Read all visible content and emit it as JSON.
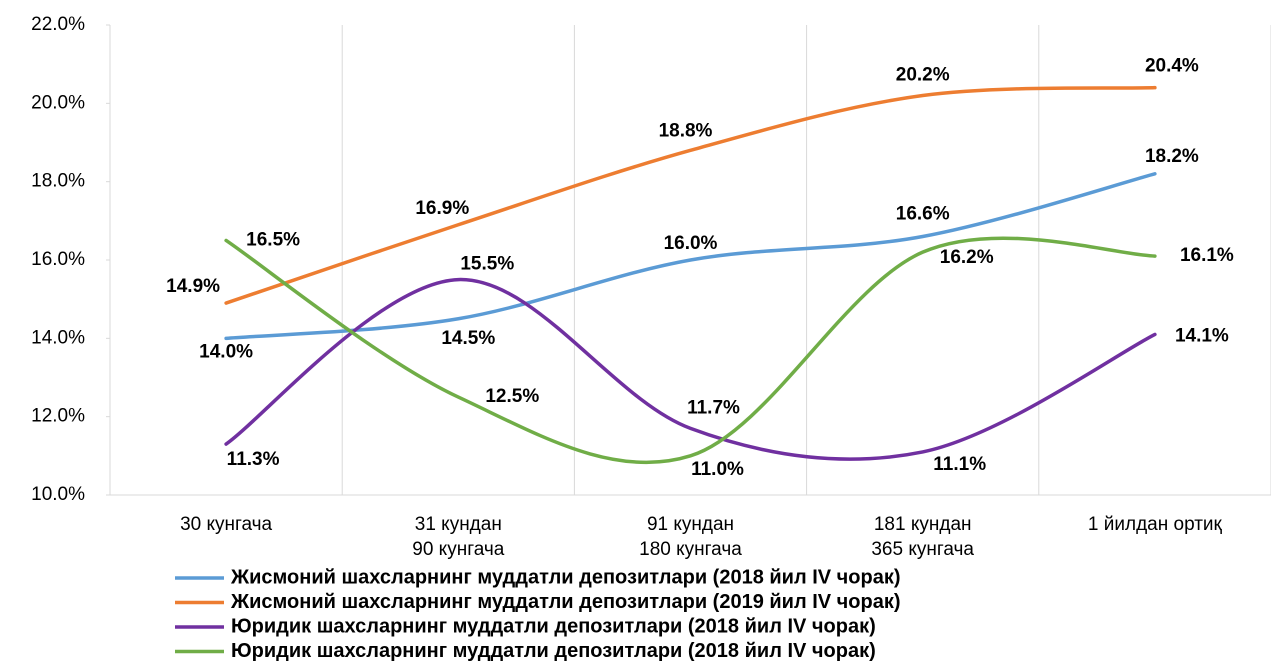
{
  "chart_data": {
    "type": "line",
    "categories": [
      "30 кунгача",
      "31 кундан\n90 кунгача",
      "91 кундан\n180 кунгача",
      "181 кундан\n365 кунгача",
      "1 йилдан ортиқ"
    ],
    "ylim": [
      10,
      22
    ],
    "yticks": [
      {
        "value": 10,
        "label": "10.0%"
      },
      {
        "value": 12,
        "label": "12.0%"
      },
      {
        "value": 14,
        "label": "14.0%"
      },
      {
        "value": 16,
        "label": "16.0%"
      },
      {
        "value": 18,
        "label": "18.0%"
      },
      {
        "value": 20,
        "label": "20.0%"
      },
      {
        "value": 22,
        "label": "22.0%"
      }
    ],
    "legend": "bottom",
    "smooth": true,
    "series": [
      {
        "name": "Жисмоний шахсларнинг муддатли депозитлари (2018 йил IV чорак)",
        "color": "#5b9bd5",
        "values": [
          14.0,
          14.5,
          16.0,
          16.6,
          18.2
        ],
        "value_labels": [
          "14.0%",
          "14.5%",
          "16.0%",
          "16.6%",
          "18.2%"
        ]
      },
      {
        "name": "Жисмоний шахсларнинг муддатли депозитлари (2019 йил IV чорак)",
        "color": "#ed7d31",
        "values": [
          14.9,
          16.9,
          18.8,
          20.2,
          20.4
        ],
        "value_labels": [
          "14.9%",
          "16.9%",
          "18.8%",
          "20.2%",
          "20.4%"
        ]
      },
      {
        "name": "Юридик шахсларнинг муддатли депозитлари (2018 йил IV чорак)",
        "color": "#7030a0",
        "values": [
          11.3,
          15.5,
          11.7,
          11.1,
          14.1
        ],
        "value_labels": [
          "11.3%",
          "15.5%",
          "11.7%",
          "11.1%",
          "14.1%"
        ]
      },
      {
        "name": "Юридик шахсларнинг муддатли депозитлари (2018 йил IV чорак)",
        "color": "#70ad47",
        "values": [
          16.5,
          12.5,
          11.0,
          16.2,
          16.1
        ],
        "value_labels": [
          "16.5%",
          "12.5%",
          "11.0%",
          "16.2%",
          "16.1%"
        ]
      }
    ]
  }
}
